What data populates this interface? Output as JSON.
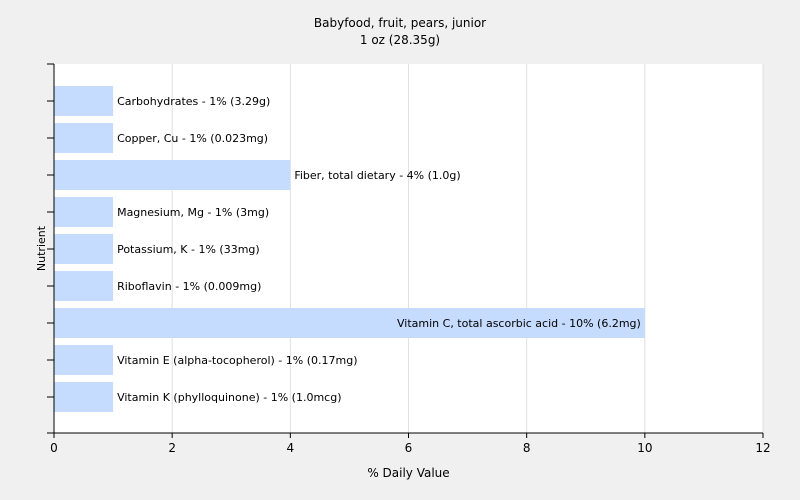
{
  "chart_data": {
    "type": "bar",
    "orientation": "horizontal",
    "title": "Babyfood, fruit, pears, junior",
    "subtitle": "1 oz (28.35g)",
    "xlabel": "% Daily Value",
    "ylabel": "Nutrient",
    "xlim": [
      0,
      12
    ],
    "xticks": [
      0,
      2,
      4,
      6,
      8,
      10,
      12
    ],
    "grid": true,
    "bar_color": "#c5dcff",
    "categories": [
      "Carbohydrates",
      "Copper, Cu",
      "Fiber, total dietary",
      "Magnesium, Mg",
      "Potassium, K",
      "Riboflavin",
      "Vitamin C, total ascorbic acid",
      "Vitamin E (alpha-tocopherol)",
      "Vitamin K (phylloquinone)"
    ],
    "values": [
      1,
      1,
      4,
      1,
      1,
      1,
      10,
      1,
      1
    ],
    "labels": [
      "Carbohydrates - 1% (3.29g)",
      "Copper, Cu - 1% (0.023mg)",
      "Fiber, total dietary - 4% (1.0g)",
      "Magnesium, Mg - 1% (3mg)",
      "Potassium, K - 1% (33mg)",
      "Riboflavin - 1% (0.009mg)",
      "Vitamin C, total ascorbic acid - 10% (6.2mg)",
      "Vitamin E (alpha-tocopherol) - 1% (0.17mg)",
      "Vitamin K (phylloquinone) - 1% (1.0mcg)"
    ]
  }
}
